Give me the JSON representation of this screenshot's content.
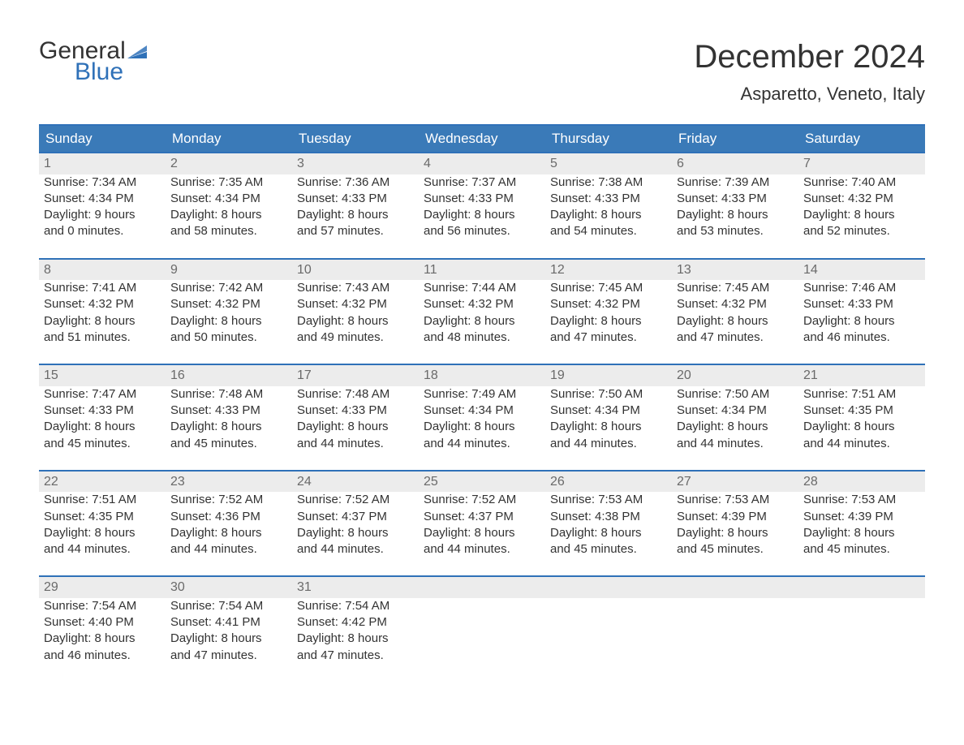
{
  "brand": {
    "word1": "General",
    "word2": "Blue",
    "accent_color": "#2f71b8"
  },
  "title": "December 2024",
  "location": "Asparetto, Veneto, Italy",
  "weekdays": [
    "Sunday",
    "Monday",
    "Tuesday",
    "Wednesday",
    "Thursday",
    "Friday",
    "Saturday"
  ],
  "colors": {
    "header_bg": "#3a7ab8",
    "header_text": "#ffffff",
    "row_sep": "#2f71b8",
    "daynum_bg": "#ececec",
    "daynum_text": "#6a6a6a",
    "body_text": "#333333",
    "background": "#ffffff"
  },
  "fonts": {
    "title_size": 40,
    "location_size": 22,
    "header_size": 17,
    "body_size": 15,
    "daynum_size": 16
  },
  "start_weekday_index": 0,
  "days": [
    {
      "n": 1,
      "sunrise": "7:34 AM",
      "sunset": "4:34 PM",
      "daylight1": "Daylight: 9 hours",
      "daylight2": "and 0 minutes."
    },
    {
      "n": 2,
      "sunrise": "7:35 AM",
      "sunset": "4:34 PM",
      "daylight1": "Daylight: 8 hours",
      "daylight2": "and 58 minutes."
    },
    {
      "n": 3,
      "sunrise": "7:36 AM",
      "sunset": "4:33 PM",
      "daylight1": "Daylight: 8 hours",
      "daylight2": "and 57 minutes."
    },
    {
      "n": 4,
      "sunrise": "7:37 AM",
      "sunset": "4:33 PM",
      "daylight1": "Daylight: 8 hours",
      "daylight2": "and 56 minutes."
    },
    {
      "n": 5,
      "sunrise": "7:38 AM",
      "sunset": "4:33 PM",
      "daylight1": "Daylight: 8 hours",
      "daylight2": "and 54 minutes."
    },
    {
      "n": 6,
      "sunrise": "7:39 AM",
      "sunset": "4:33 PM",
      "daylight1": "Daylight: 8 hours",
      "daylight2": "and 53 minutes."
    },
    {
      "n": 7,
      "sunrise": "7:40 AM",
      "sunset": "4:32 PM",
      "daylight1": "Daylight: 8 hours",
      "daylight2": "and 52 minutes."
    },
    {
      "n": 8,
      "sunrise": "7:41 AM",
      "sunset": "4:32 PM",
      "daylight1": "Daylight: 8 hours",
      "daylight2": "and 51 minutes."
    },
    {
      "n": 9,
      "sunrise": "7:42 AM",
      "sunset": "4:32 PM",
      "daylight1": "Daylight: 8 hours",
      "daylight2": "and 50 minutes."
    },
    {
      "n": 10,
      "sunrise": "7:43 AM",
      "sunset": "4:32 PM",
      "daylight1": "Daylight: 8 hours",
      "daylight2": "and 49 minutes."
    },
    {
      "n": 11,
      "sunrise": "7:44 AM",
      "sunset": "4:32 PM",
      "daylight1": "Daylight: 8 hours",
      "daylight2": "and 48 minutes."
    },
    {
      "n": 12,
      "sunrise": "7:45 AM",
      "sunset": "4:32 PM",
      "daylight1": "Daylight: 8 hours",
      "daylight2": "and 47 minutes."
    },
    {
      "n": 13,
      "sunrise": "7:45 AM",
      "sunset": "4:32 PM",
      "daylight1": "Daylight: 8 hours",
      "daylight2": "and 47 minutes."
    },
    {
      "n": 14,
      "sunrise": "7:46 AM",
      "sunset": "4:33 PM",
      "daylight1": "Daylight: 8 hours",
      "daylight2": "and 46 minutes."
    },
    {
      "n": 15,
      "sunrise": "7:47 AM",
      "sunset": "4:33 PM",
      "daylight1": "Daylight: 8 hours",
      "daylight2": "and 45 minutes."
    },
    {
      "n": 16,
      "sunrise": "7:48 AM",
      "sunset": "4:33 PM",
      "daylight1": "Daylight: 8 hours",
      "daylight2": "and 45 minutes."
    },
    {
      "n": 17,
      "sunrise": "7:48 AM",
      "sunset": "4:33 PM",
      "daylight1": "Daylight: 8 hours",
      "daylight2": "and 44 minutes."
    },
    {
      "n": 18,
      "sunrise": "7:49 AM",
      "sunset": "4:34 PM",
      "daylight1": "Daylight: 8 hours",
      "daylight2": "and 44 minutes."
    },
    {
      "n": 19,
      "sunrise": "7:50 AM",
      "sunset": "4:34 PM",
      "daylight1": "Daylight: 8 hours",
      "daylight2": "and 44 minutes."
    },
    {
      "n": 20,
      "sunrise": "7:50 AM",
      "sunset": "4:34 PM",
      "daylight1": "Daylight: 8 hours",
      "daylight2": "and 44 minutes."
    },
    {
      "n": 21,
      "sunrise": "7:51 AM",
      "sunset": "4:35 PM",
      "daylight1": "Daylight: 8 hours",
      "daylight2": "and 44 minutes."
    },
    {
      "n": 22,
      "sunrise": "7:51 AM",
      "sunset": "4:35 PM",
      "daylight1": "Daylight: 8 hours",
      "daylight2": "and 44 minutes."
    },
    {
      "n": 23,
      "sunrise": "7:52 AM",
      "sunset": "4:36 PM",
      "daylight1": "Daylight: 8 hours",
      "daylight2": "and 44 minutes."
    },
    {
      "n": 24,
      "sunrise": "7:52 AM",
      "sunset": "4:37 PM",
      "daylight1": "Daylight: 8 hours",
      "daylight2": "and 44 minutes."
    },
    {
      "n": 25,
      "sunrise": "7:52 AM",
      "sunset": "4:37 PM",
      "daylight1": "Daylight: 8 hours",
      "daylight2": "and 44 minutes."
    },
    {
      "n": 26,
      "sunrise": "7:53 AM",
      "sunset": "4:38 PM",
      "daylight1": "Daylight: 8 hours",
      "daylight2": "and 45 minutes."
    },
    {
      "n": 27,
      "sunrise": "7:53 AM",
      "sunset": "4:39 PM",
      "daylight1": "Daylight: 8 hours",
      "daylight2": "and 45 minutes."
    },
    {
      "n": 28,
      "sunrise": "7:53 AM",
      "sunset": "4:39 PM",
      "daylight1": "Daylight: 8 hours",
      "daylight2": "and 45 minutes."
    },
    {
      "n": 29,
      "sunrise": "7:54 AM",
      "sunset": "4:40 PM",
      "daylight1": "Daylight: 8 hours",
      "daylight2": "and 46 minutes."
    },
    {
      "n": 30,
      "sunrise": "7:54 AM",
      "sunset": "4:41 PM",
      "daylight1": "Daylight: 8 hours",
      "daylight2": "and 47 minutes."
    },
    {
      "n": 31,
      "sunrise": "7:54 AM",
      "sunset": "4:42 PM",
      "daylight1": "Daylight: 8 hours",
      "daylight2": "and 47 minutes."
    }
  ],
  "labels": {
    "sunrise": "Sunrise: ",
    "sunset": "Sunset: "
  }
}
